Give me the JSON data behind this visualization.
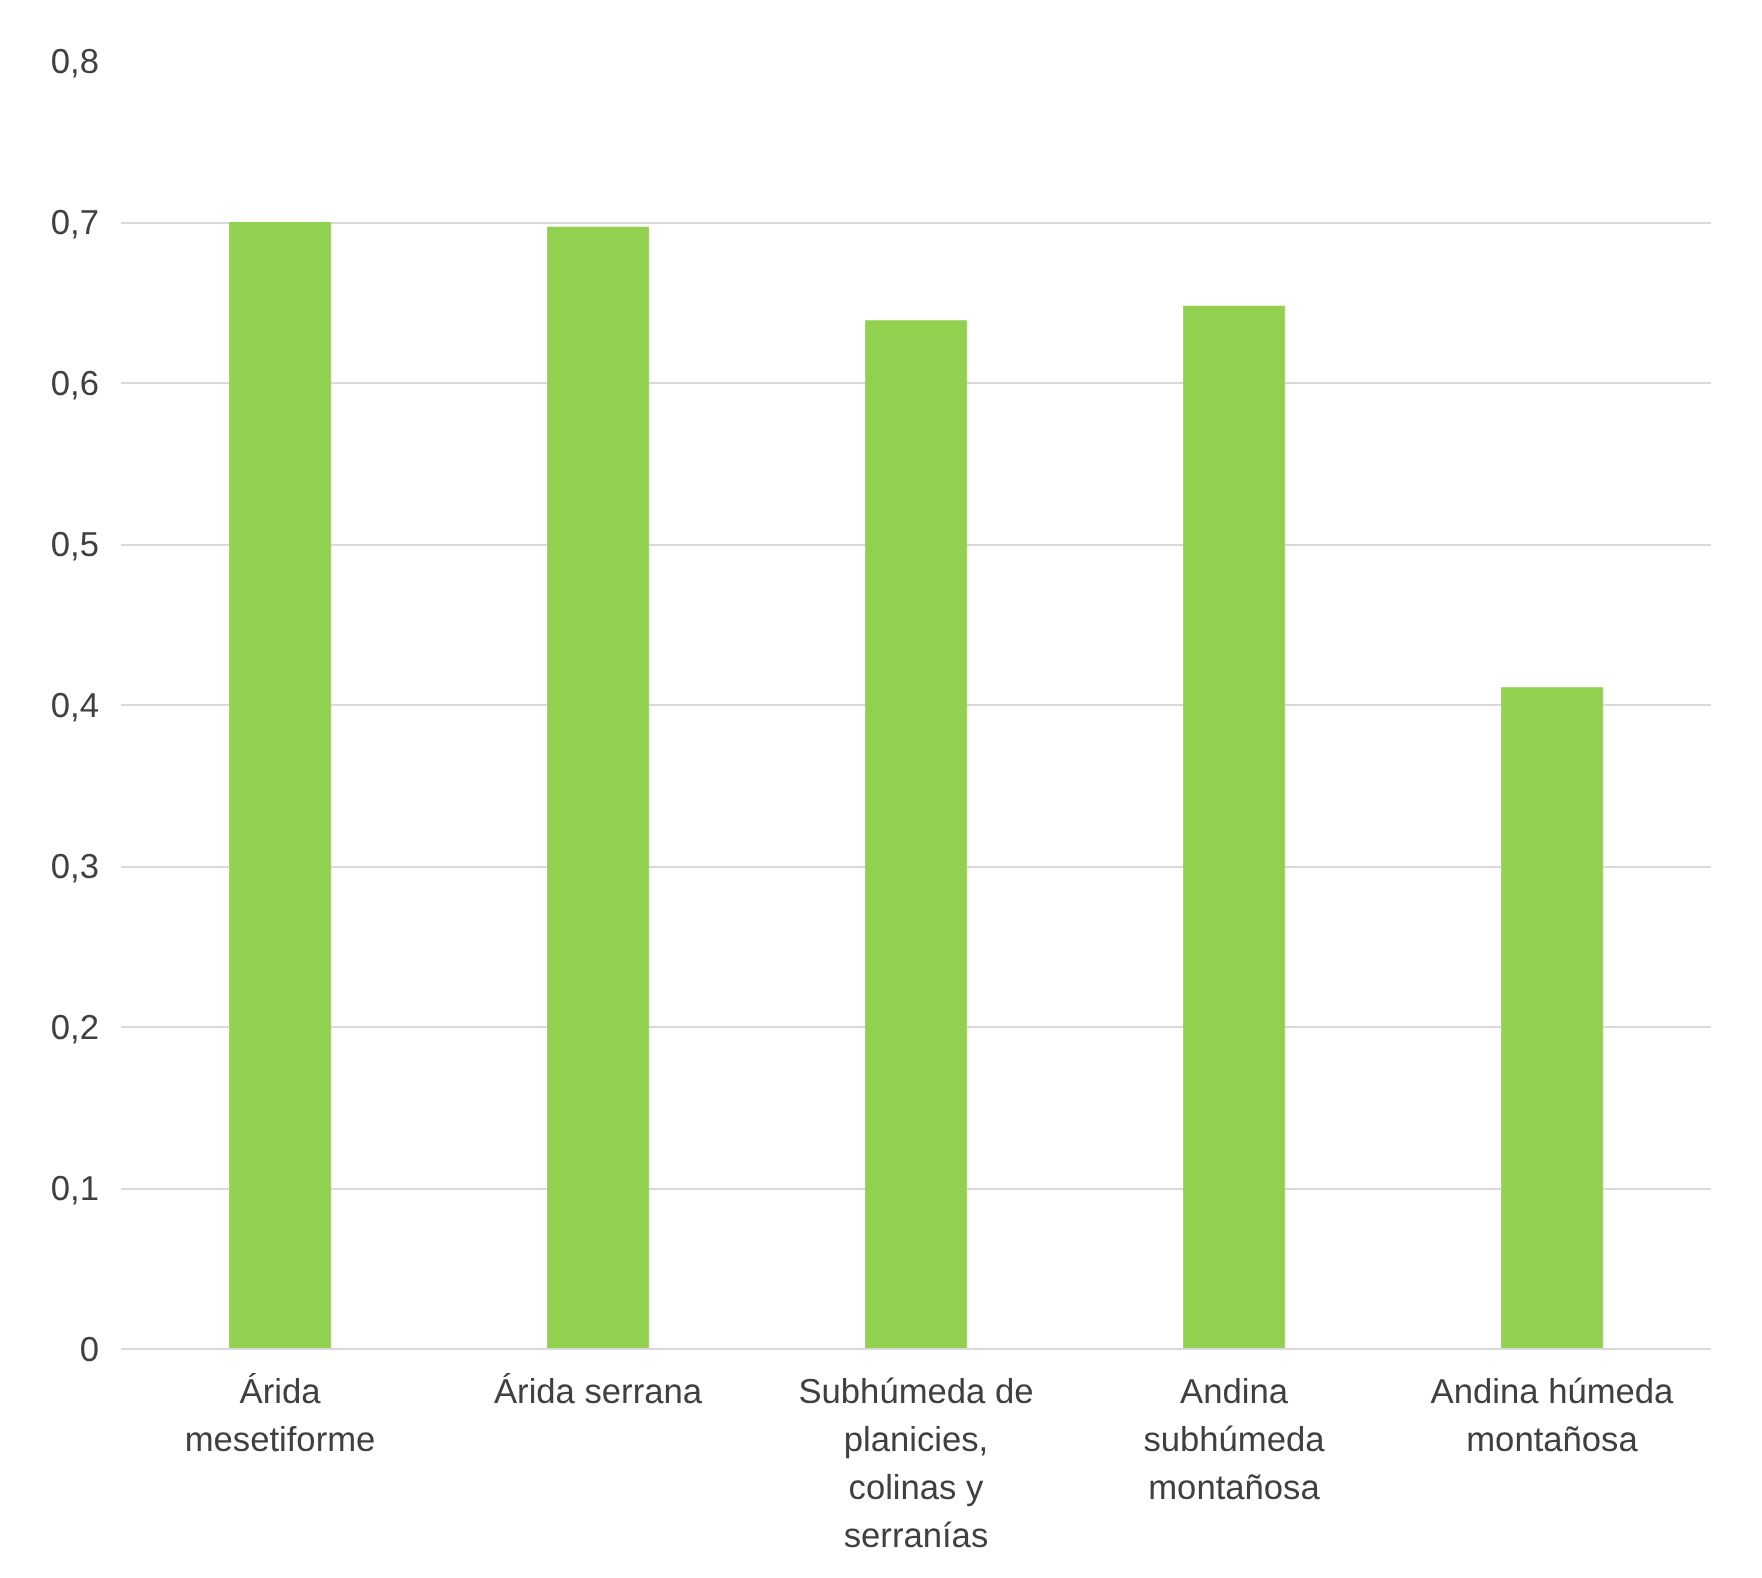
{
  "chart_data": {
    "type": "bar",
    "categories": [
      "Árida mesetiforme",
      "Árida serrana",
      "Subhúmeda de planicies, colinas y serranías",
      "Andina subhúmeda montañosa",
      "Andina húmeda montañosa"
    ],
    "values": [
      0.7,
      0.697,
      0.639,
      0.648,
      0.411
    ],
    "color": "#92d050",
    "ylim": [
      0,
      0.8
    ],
    "yticks": [
      0,
      {
        "value": 0.1,
        "label": "0,1"
      },
      {
        "value": 0.2,
        "label": "0,2"
      },
      {
        "value": 0.3,
        "label": "0,3"
      },
      {
        "value": 0.4,
        "label": "0,4"
      },
      {
        "value": 0.5,
        "label": "0,5"
      },
      {
        "value": 0.6,
        "label": "0,6"
      },
      {
        "value": 0.7,
        "label": "0,7"
      },
      {
        "value": 0.8,
        "label": "0,8"
      }
    ],
    "grid": "y"
  }
}
